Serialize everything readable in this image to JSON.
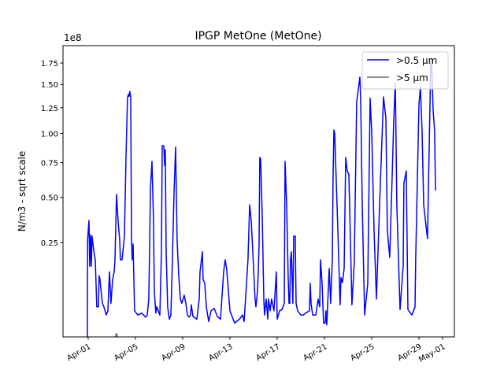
{
  "chart_data": {
    "type": "line",
    "title": "IPGP MetOne (MetOne)",
    "xlabel": "",
    "ylabel": "N/m3 - sqrt scale",
    "y_scale": "sqrt",
    "y_offset_text": "1e8",
    "x_unit": "day of April",
    "xlim": [
      -1.13,
      32.0
    ],
    "ylim": [
      0.0045,
      1.967
    ],
    "grid": false,
    "legend_placement": "top-right",
    "x_ticks": [
      {
        "day": 1,
        "label": "Apr-01"
      },
      {
        "day": 5,
        "label": "Apr-05"
      },
      {
        "day": 9,
        "label": "Apr-09"
      },
      {
        "day": 13,
        "label": "Apr-13"
      },
      {
        "day": 17,
        "label": "Apr-17"
      },
      {
        "day": 21,
        "label": "Apr-21"
      },
      {
        "day": 25,
        "label": "Apr-25"
      },
      {
        "day": 29,
        "label": "Apr-29"
      },
      {
        "day": 31,
        "label": "May-01"
      }
    ],
    "y_ticks": [
      {
        "value": 0.25,
        "label": "0.25"
      },
      {
        "value": 0.5,
        "label": "0.50"
      },
      {
        "value": 0.75,
        "label": "0.75"
      },
      {
        "value": 1.0,
        "label": "1.00"
      },
      {
        "value": 1.25,
        "label": "1.25"
      },
      {
        "value": 1.5,
        "label": "1.50"
      },
      {
        "value": 1.75,
        "label": "1.75"
      }
    ],
    "series": [
      {
        "name": ">0.5 µm",
        "color": "#0000ff",
        "points": [
          [
            0.93,
            0.004
          ],
          [
            0.95,
            0.261
          ],
          [
            1.07,
            0.361
          ],
          [
            1.13,
            0.153
          ],
          [
            1.2,
            0.287
          ],
          [
            1.27,
            0.153
          ],
          [
            1.33,
            0.28
          ],
          [
            1.47,
            0.215
          ],
          [
            1.6,
            0.177
          ],
          [
            1.73,
            0.042
          ],
          [
            1.87,
            0.042
          ],
          [
            1.93,
            0.121
          ],
          [
            2.0,
            0.109
          ],
          [
            2.13,
            0.067
          ],
          [
            2.2,
            0.049
          ],
          [
            2.33,
            0.042
          ],
          [
            2.53,
            0.028
          ],
          [
            2.67,
            0.035
          ],
          [
            2.8,
            0.134
          ],
          [
            2.93,
            0.049
          ],
          [
            3.07,
            0.109
          ],
          [
            3.2,
            0.134
          ],
          [
            3.27,
            0.177
          ],
          [
            3.4,
            0.519
          ],
          [
            3.53,
            0.361
          ],
          [
            3.67,
            0.261
          ],
          [
            3.73,
            0.177
          ],
          [
            3.87,
            0.177
          ],
          [
            4.0,
            0.243
          ],
          [
            4.07,
            0.28
          ],
          [
            4.2,
            0.792
          ],
          [
            4.33,
            1.348
          ],
          [
            4.4,
            1.39
          ],
          [
            4.47,
            1.37
          ],
          [
            4.53,
            1.424
          ],
          [
            4.6,
            1.348
          ],
          [
            4.67,
            0.261
          ],
          [
            4.73,
            0.177
          ],
          [
            4.8,
            0.243
          ],
          [
            4.93,
            0.035
          ],
          [
            5.2,
            0.028
          ],
          [
            5.53,
            0.031
          ],
          [
            5.87,
            0.025
          ],
          [
            6.0,
            0.028
          ],
          [
            6.13,
            0.058
          ],
          [
            6.2,
            0.226
          ],
          [
            6.27,
            0.556
          ],
          [
            6.4,
            0.76
          ],
          [
            6.53,
            0.361
          ],
          [
            6.6,
            0.076
          ],
          [
            6.73,
            0.031
          ],
          [
            6.8,
            0.042
          ],
          [
            7.07,
            0.028
          ],
          [
            7.2,
            0.209
          ],
          [
            7.27,
            0.891
          ],
          [
            7.4,
            0.891
          ],
          [
            7.47,
            0.729
          ],
          [
            7.53,
            0.857
          ],
          [
            7.6,
            0.209
          ],
          [
            7.73,
            0.042
          ],
          [
            7.87,
            0.022
          ],
          [
            8.0,
            0.028
          ],
          [
            8.13,
            0.177
          ],
          [
            8.27,
            0.529
          ],
          [
            8.4,
            0.878
          ],
          [
            8.53,
            0.261
          ],
          [
            8.67,
            0.121
          ],
          [
            8.8,
            0.058
          ],
          [
            8.93,
            0.049
          ],
          [
            9.13,
            0.067
          ],
          [
            9.27,
            0.049
          ],
          [
            9.4,
            0.028
          ],
          [
            9.53,
            0.025
          ],
          [
            9.67,
            0.028
          ],
          [
            9.73,
            0.046
          ],
          [
            9.87,
            0.026
          ],
          [
            10.2,
            0.022
          ],
          [
            10.4,
            0.058
          ],
          [
            10.47,
            0.134
          ],
          [
            10.67,
            0.209
          ],
          [
            10.73,
            0.109
          ],
          [
            10.87,
            0.098
          ],
          [
            11.0,
            0.042
          ],
          [
            11.2,
            0.019
          ],
          [
            11.4,
            0.035
          ],
          [
            11.67,
            0.039
          ],
          [
            11.93,
            0.026
          ],
          [
            12.2,
            0.022
          ],
          [
            12.47,
            0.134
          ],
          [
            12.6,
            0.177
          ],
          [
            12.73,
            0.142
          ],
          [
            13.0,
            0.035
          ],
          [
            13.4,
            0.017
          ],
          [
            13.8,
            0.022
          ],
          [
            14.07,
            0.028
          ],
          [
            14.2,
            0.019
          ],
          [
            14.53,
            0.177
          ],
          [
            14.67,
            0.453
          ],
          [
            14.8,
            0.361
          ],
          [
            15.0,
            0.148
          ],
          [
            15.13,
            0.058
          ],
          [
            15.2,
            0.042
          ],
          [
            15.33,
            0.076
          ],
          [
            15.4,
            0.134
          ],
          [
            15.47,
            0.243
          ],
          [
            15.53,
            0.792
          ],
          [
            15.6,
            0.779
          ],
          [
            15.73,
            0.406
          ],
          [
            15.87,
            0.058
          ],
          [
            15.93,
            0.028
          ],
          [
            16.07,
            0.058
          ],
          [
            16.2,
            0.022
          ],
          [
            16.27,
            0.058
          ],
          [
            16.4,
            0.035
          ],
          [
            16.53,
            0.058
          ],
          [
            16.73,
            0.035
          ],
          [
            16.93,
            0.134
          ],
          [
            17.0,
            0.022
          ],
          [
            17.2,
            0.035
          ],
          [
            17.4,
            0.037
          ],
          [
            17.6,
            0.049
          ],
          [
            17.67,
            0.76
          ],
          [
            17.8,
            0.453
          ],
          [
            17.93,
            0.121
          ],
          [
            18.0,
            0.049
          ],
          [
            18.07,
            0.049
          ],
          [
            18.13,
            0.177
          ],
          [
            18.2,
            0.209
          ],
          [
            18.33,
            0.049
          ],
          [
            18.4,
            0.28
          ],
          [
            18.53,
            0.28
          ],
          [
            18.6,
            0.049
          ],
          [
            18.73,
            0.035
          ],
          [
            19.0,
            0.028
          ],
          [
            19.2,
            0.028
          ],
          [
            19.4,
            0.031
          ],
          [
            19.73,
            0.035
          ],
          [
            19.8,
            0.098
          ],
          [
            19.87,
            0.049
          ],
          [
            20.0,
            0.028
          ],
          [
            20.27,
            0.028
          ],
          [
            20.47,
            0.058
          ],
          [
            20.6,
            0.042
          ],
          [
            20.67,
            0.177
          ],
          [
            20.8,
            0.098
          ],
          [
            20.93,
            0.017
          ],
          [
            21.07,
            0.017
          ],
          [
            21.13,
            0.035
          ],
          [
            21.2,
            0.015
          ],
          [
            21.4,
            0.145
          ],
          [
            21.53,
            0.049
          ],
          [
            21.67,
            0.177
          ],
          [
            21.73,
            0.611
          ],
          [
            21.8,
            1.033
          ],
          [
            21.87,
            1.0
          ],
          [
            22.07,
            0.453
          ],
          [
            22.33,
            0.046
          ],
          [
            22.4,
            0.115
          ],
          [
            22.53,
            0.1
          ],
          [
            22.67,
            0.145
          ],
          [
            22.8,
            0.792
          ],
          [
            22.93,
            0.686
          ],
          [
            23.07,
            0.66
          ],
          [
            23.33,
            0.046
          ],
          [
            23.53,
            0.168
          ],
          [
            23.73,
            1.306
          ],
          [
            24.0,
            1.583
          ],
          [
            24.07,
            1.33
          ],
          [
            24.2,
            0.453
          ],
          [
            24.4,
            0.028
          ],
          [
            24.67,
            0.098
          ],
          [
            24.87,
            1.348
          ],
          [
            25.0,
            1.018
          ],
          [
            25.2,
            0.307
          ],
          [
            25.4,
            0.058
          ],
          [
            25.67,
            0.453
          ],
          [
            26.0,
            1.364
          ],
          [
            26.2,
            1.145
          ],
          [
            26.33,
            0.307
          ],
          [
            26.53,
            0.186
          ],
          [
            26.73,
            0.628
          ],
          [
            26.87,
            1.123
          ],
          [
            27.0,
            1.52
          ],
          [
            27.13,
            0.453
          ],
          [
            27.4,
            0.037
          ],
          [
            27.67,
            0.156
          ],
          [
            27.73,
            0.594
          ],
          [
            27.93,
            0.686
          ],
          [
            28.07,
            0.037
          ],
          [
            28.4,
            0.028
          ],
          [
            28.67,
            0.042
          ],
          [
            28.73,
            0.186
          ],
          [
            29.0,
            1.281
          ],
          [
            29.13,
            1.476
          ],
          [
            29.27,
            1.018
          ],
          [
            29.4,
            0.453
          ],
          [
            29.6,
            0.332
          ],
          [
            29.73,
            0.268
          ],
          [
            29.8,
            0.556
          ],
          [
            30.0,
            1.75
          ],
          [
            30.07,
            1.8
          ],
          [
            30.2,
            1.224
          ],
          [
            30.33,
            1.018
          ],
          [
            30.4,
            0.545
          ]
        ]
      },
      {
        "name": ">5 µm",
        "color": "#6e6e6e",
        "points": [
          [
            0.93,
            0.0
          ],
          [
            3.2,
            0.0
          ],
          [
            3.35,
            0.0065
          ],
          [
            3.45,
            0.0065
          ],
          [
            3.6,
            0.0
          ],
          [
            30.4,
            0.0
          ]
        ]
      }
    ]
  }
}
